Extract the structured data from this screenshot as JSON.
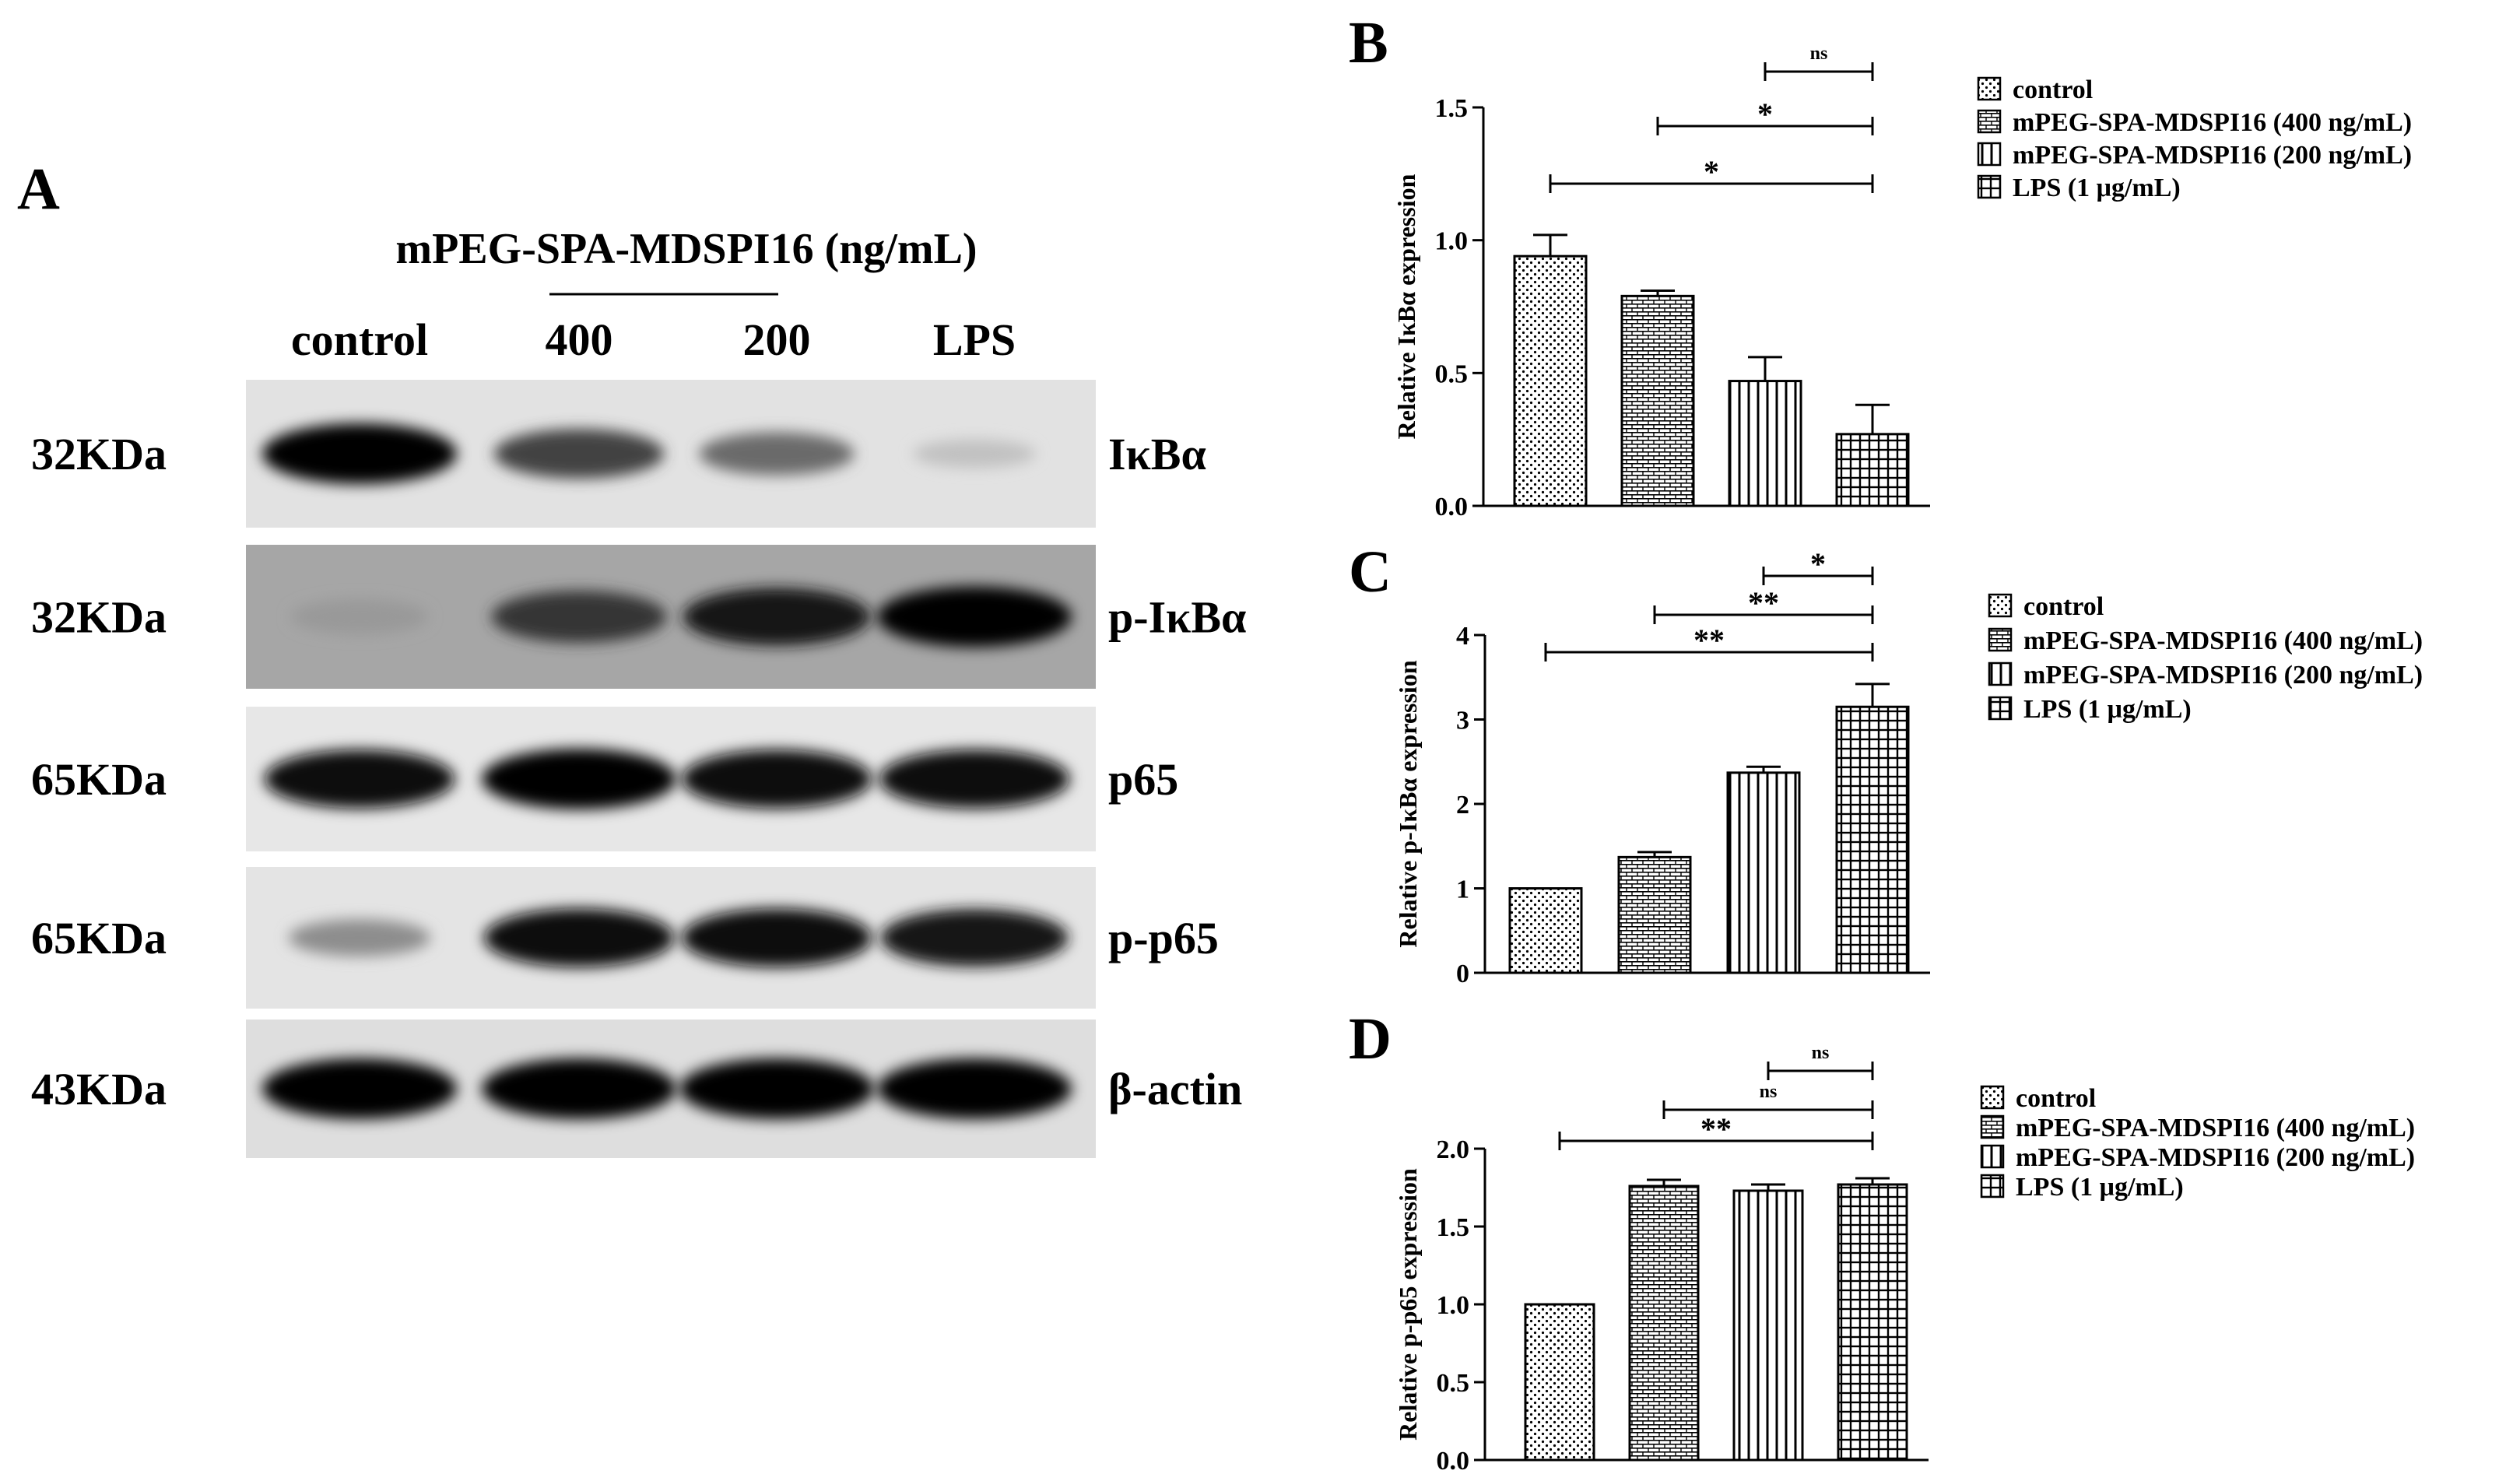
{
  "panel_a": {
    "letter": "A",
    "treatment_title": "mPEG-SPA-MDSPI16 (ng/mL)",
    "lane_labels": [
      "control",
      "400",
      "200",
      "LPS"
    ],
    "blots": [
      {
        "mw": "32KDa",
        "protein": "IκBα",
        "band_intensity": [
          1.0,
          0.72,
          0.55,
          0.18
        ],
        "background": "#e2e2e2"
      },
      {
        "mw": "32KDa",
        "protein": "p-IκBα",
        "band_intensity": [
          0.35,
          0.78,
          0.92,
          1.0
        ],
        "background": "#a6a6a6"
      },
      {
        "mw": "65KDa",
        "protein": "p65",
        "band_intensity": [
          0.95,
          1.0,
          0.95,
          0.95
        ],
        "background": "#e7e7e7"
      },
      {
        "mw": "65KDa",
        "protein": "p-p65",
        "band_intensity": [
          0.4,
          0.95,
          0.95,
          0.92
        ],
        "background": "#e4e4e4"
      },
      {
        "mw": "43KDa",
        "protein": "β-actin",
        "band_intensity": [
          1.0,
          1.0,
          1.0,
          1.0
        ],
        "background": "#dedede"
      }
    ]
  },
  "chart_data": [
    {
      "type": "bar",
      "panel": "B",
      "ylabel": "Relative IκBα expression",
      "ylim": [
        0,
        1.5
      ],
      "yticks": [
        "0.0",
        "0.5",
        "1.0",
        "1.5"
      ],
      "categories": [
        "control",
        "mPEG-SPA-MDSPI16 (400 ng/mL)",
        "mPEG-SPA-MDSPI16 (200 ng/mL)",
        "LPS (1 μg/mL)"
      ],
      "values": [
        0.94,
        0.79,
        0.47,
        0.27
      ],
      "errors": [
        0.08,
        0.02,
        0.09,
        0.11
      ],
      "significance": [
        {
          "from": 2,
          "to": 3,
          "label": "ns"
        },
        {
          "from": 1,
          "to": 3,
          "label": "*"
        },
        {
          "from": 0,
          "to": 3,
          "label": "*"
        }
      ],
      "legend_placement": "right"
    },
    {
      "type": "bar",
      "panel": "C",
      "ylabel": "Relative p-IκBα expression",
      "ylim": [
        0,
        4
      ],
      "yticks": [
        "0",
        "1",
        "2",
        "3",
        "4"
      ],
      "categories": [
        "control",
        "mPEG-SPA-MDSPI16 (400 ng/mL)",
        "mPEG-SPA-MDSPI16 (200 ng/mL)",
        "LPS (1 μg/mL)"
      ],
      "values": [
        1.0,
        1.37,
        2.37,
        3.15
      ],
      "errors": [
        0.0,
        0.06,
        0.07,
        0.27
      ],
      "significance": [
        {
          "from": 2,
          "to": 3,
          "label": "*"
        },
        {
          "from": 1,
          "to": 3,
          "label": "**"
        },
        {
          "from": 0,
          "to": 3,
          "label": "**"
        }
      ],
      "legend_placement": "right"
    },
    {
      "type": "bar",
      "panel": "D",
      "ylabel": "Relative p-p65 expression",
      "ylim": [
        0,
        2.0
      ],
      "yticks": [
        "0.0",
        "0.5",
        "1.0",
        "1.5",
        "2.0"
      ],
      "categories": [
        "control",
        "mPEG-SPA-MDSPI16 (400 ng/mL)",
        "mPEG-SPA-MDSPI16 (200 ng/mL)",
        "LPS (1 μg/mL)"
      ],
      "values": [
        1.0,
        1.76,
        1.73,
        1.77
      ],
      "errors": [
        0.0,
        0.04,
        0.04,
        0.04
      ],
      "significance": [
        {
          "from": 2,
          "to": 3,
          "label": "ns"
        },
        {
          "from": 1,
          "to": 3,
          "label": "ns"
        },
        {
          "from": 0,
          "to": 3,
          "label": "**"
        }
      ],
      "legend_placement": "right"
    }
  ]
}
